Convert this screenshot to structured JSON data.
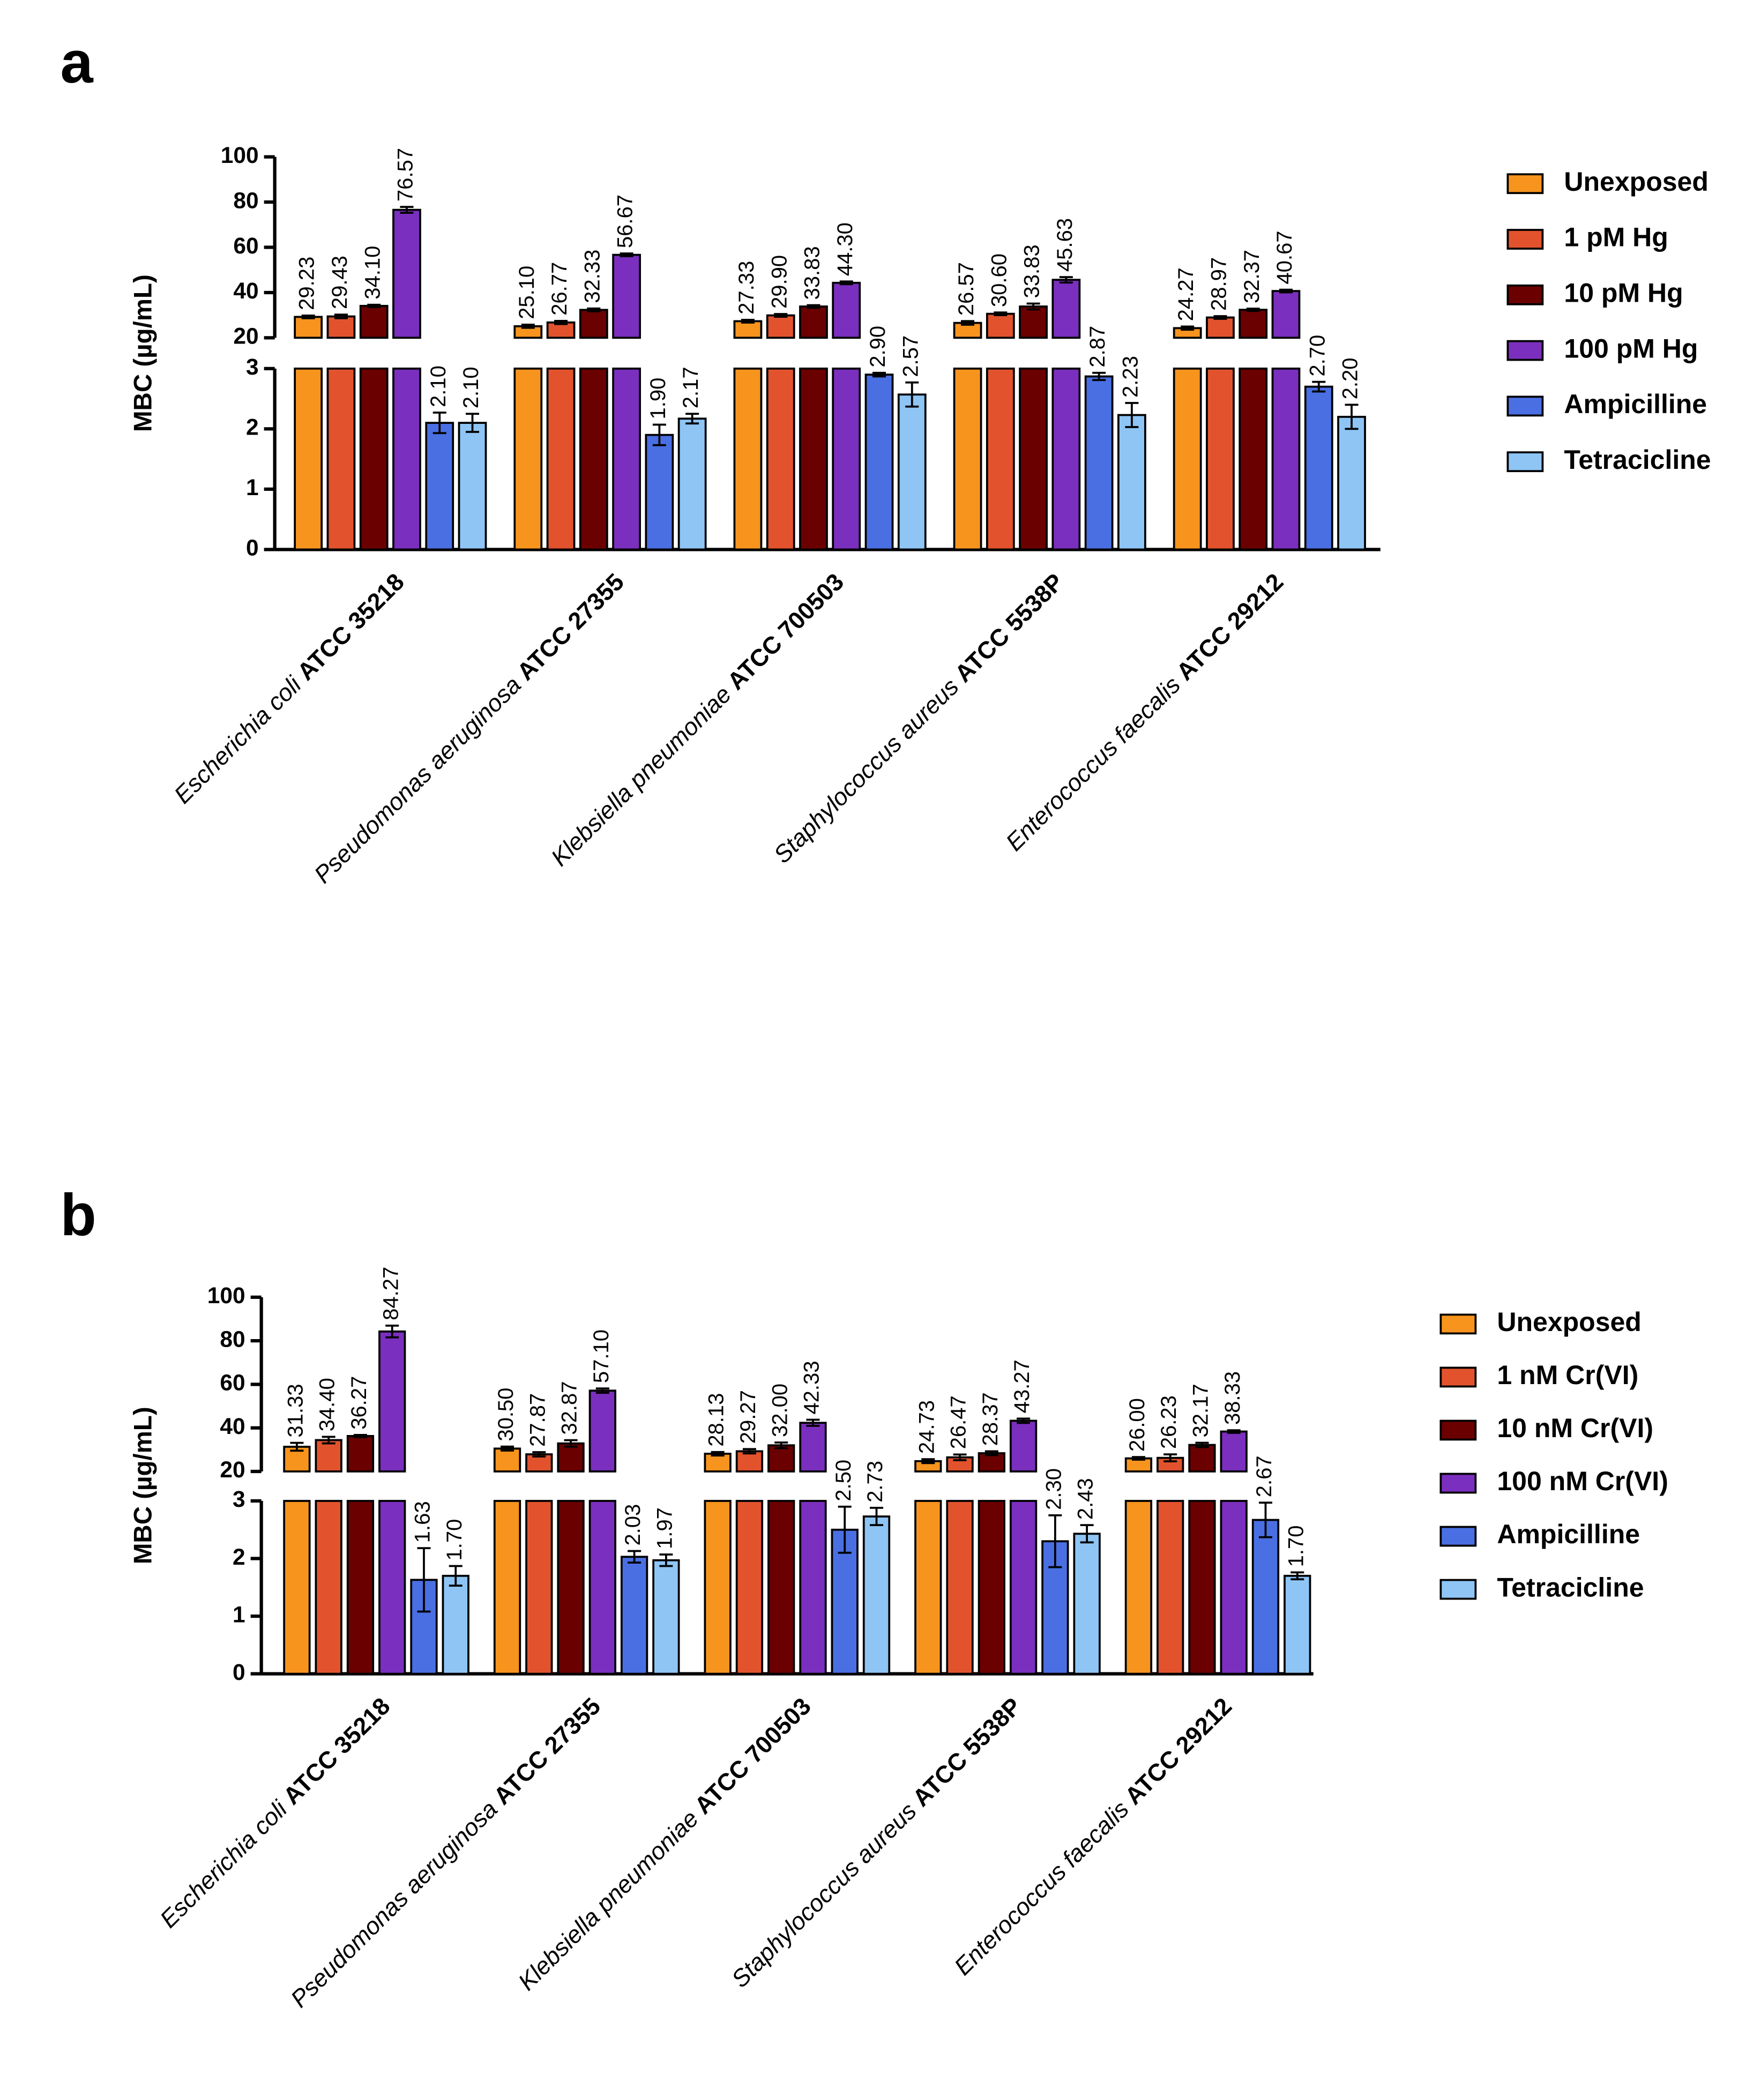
{
  "chart_data": [
    {
      "type": "bar",
      "panel_label": "a",
      "y_label": "MBC (µg/mL)",
      "categories": [
        {
          "species": "Escherichia coli",
          "strain": "ATCC 35218"
        },
        {
          "species": "Pseudomonas aeruginosa",
          "strain": "ATCC 27355"
        },
        {
          "species": "Klebsiella pneumoniae",
          "strain": "ATCC 700503"
        },
        {
          "species": "Staphylococcus aureus",
          "strain": "ATCC 5538P"
        },
        {
          "species": "Enterococcus faecalis",
          "strain": "ATCC 29212"
        }
      ],
      "y_segments": [
        {
          "ylim": [
            0,
            3
          ],
          "yticks": [
            0,
            1,
            2,
            3
          ]
        },
        {
          "ylim": [
            20,
            100
          ],
          "yticks": [
            20,
            40,
            60,
            80,
            100
          ]
        }
      ],
      "series": [
        {
          "name": "Unexposed",
          "color": "#f7941d",
          "values": [
            29.23,
            25.1,
            27.33,
            26.57,
            24.27
          ],
          "value_labels": [
            "29.23",
            "25.10",
            "27.33",
            "26.57",
            "24.27"
          ],
          "errors": [
            0.6,
            0.7,
            0.6,
            0.8,
            0.7
          ]
        },
        {
          "name": "1 pM Hg",
          "color": "#e2532d",
          "values": [
            29.43,
            26.77,
            29.9,
            30.6,
            28.97
          ],
          "value_labels": [
            "29.43",
            "26.77",
            "29.90",
            "30.60",
            "28.97"
          ],
          "errors": [
            0.8,
            0.7,
            0.6,
            0.6,
            0.6
          ]
        },
        {
          "name": "10 pM Hg",
          "color": "#6b0000",
          "values": [
            34.1,
            32.33,
            33.83,
            33.83,
            32.37
          ],
          "value_labels": [
            "34.10",
            "32.33",
            "33.83",
            "33.83",
            "32.37"
          ],
          "errors": [
            0.5,
            0.6,
            0.6,
            1.3,
            0.5
          ]
        },
        {
          "name": "100 pM Hg",
          "color": "#7b2fbe",
          "values": [
            76.57,
            56.67,
            44.3,
            45.63,
            40.67
          ],
          "value_labels": [
            "76.57",
            "56.67",
            "44.30",
            "45.63",
            "40.67"
          ],
          "errors": [
            1.3,
            0.6,
            0.6,
            1.2,
            0.6
          ]
        },
        {
          "name": "Ampicilline",
          "color": "#4a6fe3",
          "values": [
            2.1,
            1.9,
            2.9,
            2.87,
            2.7
          ],
          "value_labels": [
            "2.10",
            "1.90",
            "2.90",
            "2.87",
            "2.70"
          ],
          "errors": [
            0.17,
            0.17,
            0.03,
            0.06,
            0.08
          ]
        },
        {
          "name": "Tetracicline",
          "color": "#8ec5f5",
          "values": [
            2.1,
            2.17,
            2.57,
            2.23,
            2.2
          ],
          "value_labels": [
            "2.10",
            "2.17",
            "2.57",
            "2.23",
            "2.20"
          ],
          "errors": [
            0.15,
            0.08,
            0.2,
            0.2,
            0.2
          ]
        }
      ]
    },
    {
      "type": "bar",
      "panel_label": "b",
      "y_label": "MBC (µg/mL)",
      "categories": [
        {
          "species": "Escherichia coli",
          "strain": "ATCC 35218"
        },
        {
          "species": "Pseudomonas aeruginosa",
          "strain": "ATCC 27355"
        },
        {
          "species": "Klebsiella pneumoniae",
          "strain": "ATCC 700503"
        },
        {
          "species": "Staphylococcus aureus",
          "strain": "ATCC 5538P"
        },
        {
          "species": "Enterococcus faecalis",
          "strain": "ATCC 29212"
        }
      ],
      "y_segments": [
        {
          "ylim": [
            0,
            3
          ],
          "yticks": [
            0,
            1,
            2,
            3
          ]
        },
        {
          "ylim": [
            20,
            100
          ],
          "yticks": [
            20,
            40,
            60,
            80,
            100
          ]
        }
      ],
      "series": [
        {
          "name": "Unexposed",
          "color": "#f7941d",
          "values": [
            31.33,
            30.5,
            28.13,
            24.73,
            26.0
          ],
          "value_labels": [
            "31.33",
            "30.50",
            "28.13",
            "24.73",
            "26.00"
          ],
          "errors": [
            1.8,
            0.9,
            0.8,
            0.9,
            0.6
          ]
        },
        {
          "name": "1 nM Cr(VI)",
          "color": "#e2532d",
          "values": [
            34.4,
            27.87,
            29.27,
            26.47,
            26.23
          ],
          "value_labels": [
            "34.40",
            "27.87",
            "29.27",
            "26.47",
            "26.23"
          ],
          "errors": [
            1.5,
            1,
            1,
            1.3,
            1.6
          ]
        },
        {
          "name": "10 nM Cr(VI)",
          "color": "#6b0000",
          "values": [
            36.27,
            32.87,
            32.0,
            28.37,
            32.17
          ],
          "value_labels": [
            "36.27",
            "32.87",
            "32.00",
            "28.37",
            "32.17"
          ],
          "errors": [
            0.5,
            1.5,
            1.3,
            0.9,
            1
          ]
        },
        {
          "name": "100 nM Cr(VI)",
          "color": "#7b2fbe",
          "values": [
            84.27,
            57.1,
            42.33,
            43.27,
            38.33
          ],
          "value_labels": [
            "84.27",
            "57.10",
            "42.33",
            "43.27",
            "38.33"
          ],
          "errors": [
            2.7,
            1,
            1.4,
            1,
            0.6
          ]
        },
        {
          "name": "Ampicilline",
          "color": "#4a6fe3",
          "values": [
            1.63,
            2.03,
            2.5,
            2.3,
            2.67
          ],
          "value_labels": [
            "1.63",
            "2.03",
            "2.50",
            "2.30",
            "2.67"
          ],
          "errors": [
            0.55,
            0.1,
            0.4,
            0.45,
            0.3
          ]
        },
        {
          "name": "Tetracicline",
          "color": "#8ec5f5",
          "values": [
            1.7,
            1.97,
            2.73,
            2.43,
            1.7
          ],
          "value_labels": [
            "1.70",
            "1.97",
            "2.73",
            "2.43",
            "1.70"
          ],
          "errors": [
            0.17,
            0.1,
            0.15,
            0.15,
            0.06
          ]
        }
      ]
    }
  ]
}
